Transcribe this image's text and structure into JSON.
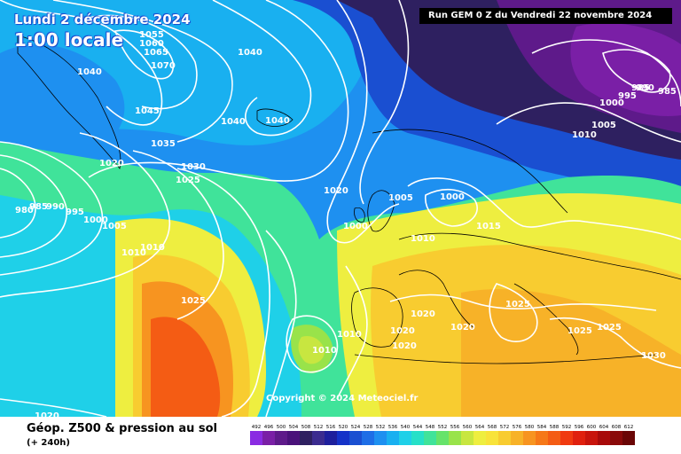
{
  "header": {
    "date": "Lundi 2 décembre 2024",
    "time": "1:00 locale",
    "run": "Run GEM 0 Z du Vendredi 22 novembre 2024"
  },
  "copyright": "Copyright © 2024 Meteociel.fr",
  "footer": {
    "title": "Géop. Z500 & pression au sol",
    "subtitle": "(+ 240h)"
  },
  "colors": {
    "scale": [
      "#8a2be2",
      "#7a1fa6",
      "#5e1a8a",
      "#4a127a",
      "#2e2060",
      "#3b2b8f",
      "#1e1f9c",
      "#1532c8",
      "#1a4fd1",
      "#1e6ee6",
      "#1e90f0",
      "#19b0f0",
      "#1fd0e8",
      "#26e0c8",
      "#40e39a",
      "#66e36a",
      "#99e34a",
      "#c8e640",
      "#eeee40",
      "#f8e33a",
      "#f8cc30",
      "#f7b228",
      "#f79420",
      "#f67818",
      "#f45c14",
      "#f03a10",
      "#e0200e",
      "#c8140c",
      "#a80a0a",
      "#8a0a0a",
      "#6a0606",
      "#3a0202"
    ]
  },
  "scale_labels": [
    "492",
    "496",
    "500",
    "504",
    "508",
    "512",
    "516",
    "520",
    "524",
    "528",
    "532",
    "536",
    "540",
    "544",
    "548",
    "552",
    "556",
    "560",
    "564",
    "568",
    "572",
    "576",
    "580",
    "584",
    "588",
    "592",
    "596",
    "600",
    "604",
    "608",
    "612"
  ],
  "isobar_labels": [
    {
      "text": "1055"
    },
    {
      "text": "1060"
    },
    {
      "text": "1065"
    },
    {
      "text": "1070"
    },
    {
      "text": "1040"
    },
    {
      "text": "1040"
    },
    {
      "text": "1045"
    },
    {
      "text": "1040"
    },
    {
      "text": "1040"
    },
    {
      "text": "1035"
    },
    {
      "text": "1020"
    },
    {
      "text": "1030"
    },
    {
      "text": "1025"
    },
    {
      "text": "980"
    },
    {
      "text": "985"
    },
    {
      "text": "990"
    },
    {
      "text": "995"
    },
    {
      "text": "1000"
    },
    {
      "text": "1005"
    },
    {
      "text": "1010"
    },
    {
      "text": "1010"
    },
    {
      "text": "1020"
    },
    {
      "text": "1005"
    },
    {
      "text": "1000"
    },
    {
      "text": "1000"
    },
    {
      "text": "1010"
    },
    {
      "text": "1015"
    },
    {
      "text": "1025"
    },
    {
      "text": "1020"
    },
    {
      "text": "1020"
    },
    {
      "text": "1020"
    },
    {
      "text": "1020"
    },
    {
      "text": "1010"
    },
    {
      "text": "1010"
    },
    {
      "text": "1025"
    },
    {
      "text": "1025"
    },
    {
      "text": "1025"
    },
    {
      "text": "1030"
    },
    {
      "text": "1020"
    },
    {
      "text": "985"
    },
    {
      "text": "990"
    },
    {
      "text": "995"
    },
    {
      "text": "985"
    },
    {
      "text": "1000"
    },
    {
      "text": "1005"
    },
    {
      "text": "1010"
    }
  ]
}
